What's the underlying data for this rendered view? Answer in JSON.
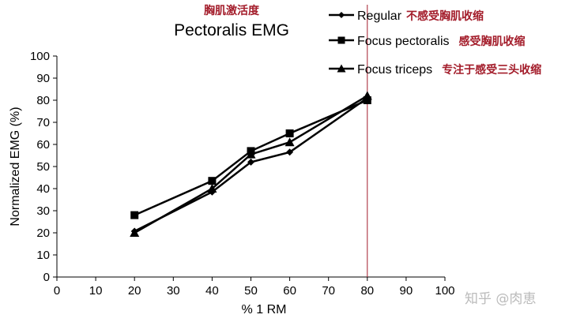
{
  "chart_data": {
    "type": "line",
    "title": "Pectoralis EMG",
    "title_annotation": "胸肌激活度",
    "xlabel": "% 1 RM",
    "ylabel": "Normalized EMG (%)",
    "xlim": [
      0,
      100
    ],
    "ylim": [
      0,
      100
    ],
    "xticks": [
      0,
      10,
      20,
      30,
      40,
      50,
      60,
      70,
      80,
      90,
      100
    ],
    "yticks": [
      0,
      10,
      20,
      30,
      40,
      50,
      60,
      70,
      80,
      90,
      100
    ],
    "grid": false,
    "legend_position": "top-right",
    "reference_line_x": 80,
    "reference_line_color": "#a31c2a",
    "x": [
      20,
      40,
      50,
      60,
      80
    ],
    "series": [
      {
        "name": "Regular",
        "annotation": "不感受胸肌收缩",
        "marker": "diamond",
        "values": [
          20.7,
          38.5,
          52,
          56.5,
          81
        ]
      },
      {
        "name": "Focus pectoralis",
        "annotation": "感受胸肌收缩",
        "marker": "square",
        "values": [
          28,
          43.5,
          57,
          65,
          80
        ]
      },
      {
        "name": "Focus triceps",
        "annotation": "专注于感受三头收缩",
        "marker": "triangle",
        "values": [
          20,
          40,
          55.5,
          61,
          82
        ]
      }
    ]
  },
  "watermark": "知乎 @肉恵"
}
